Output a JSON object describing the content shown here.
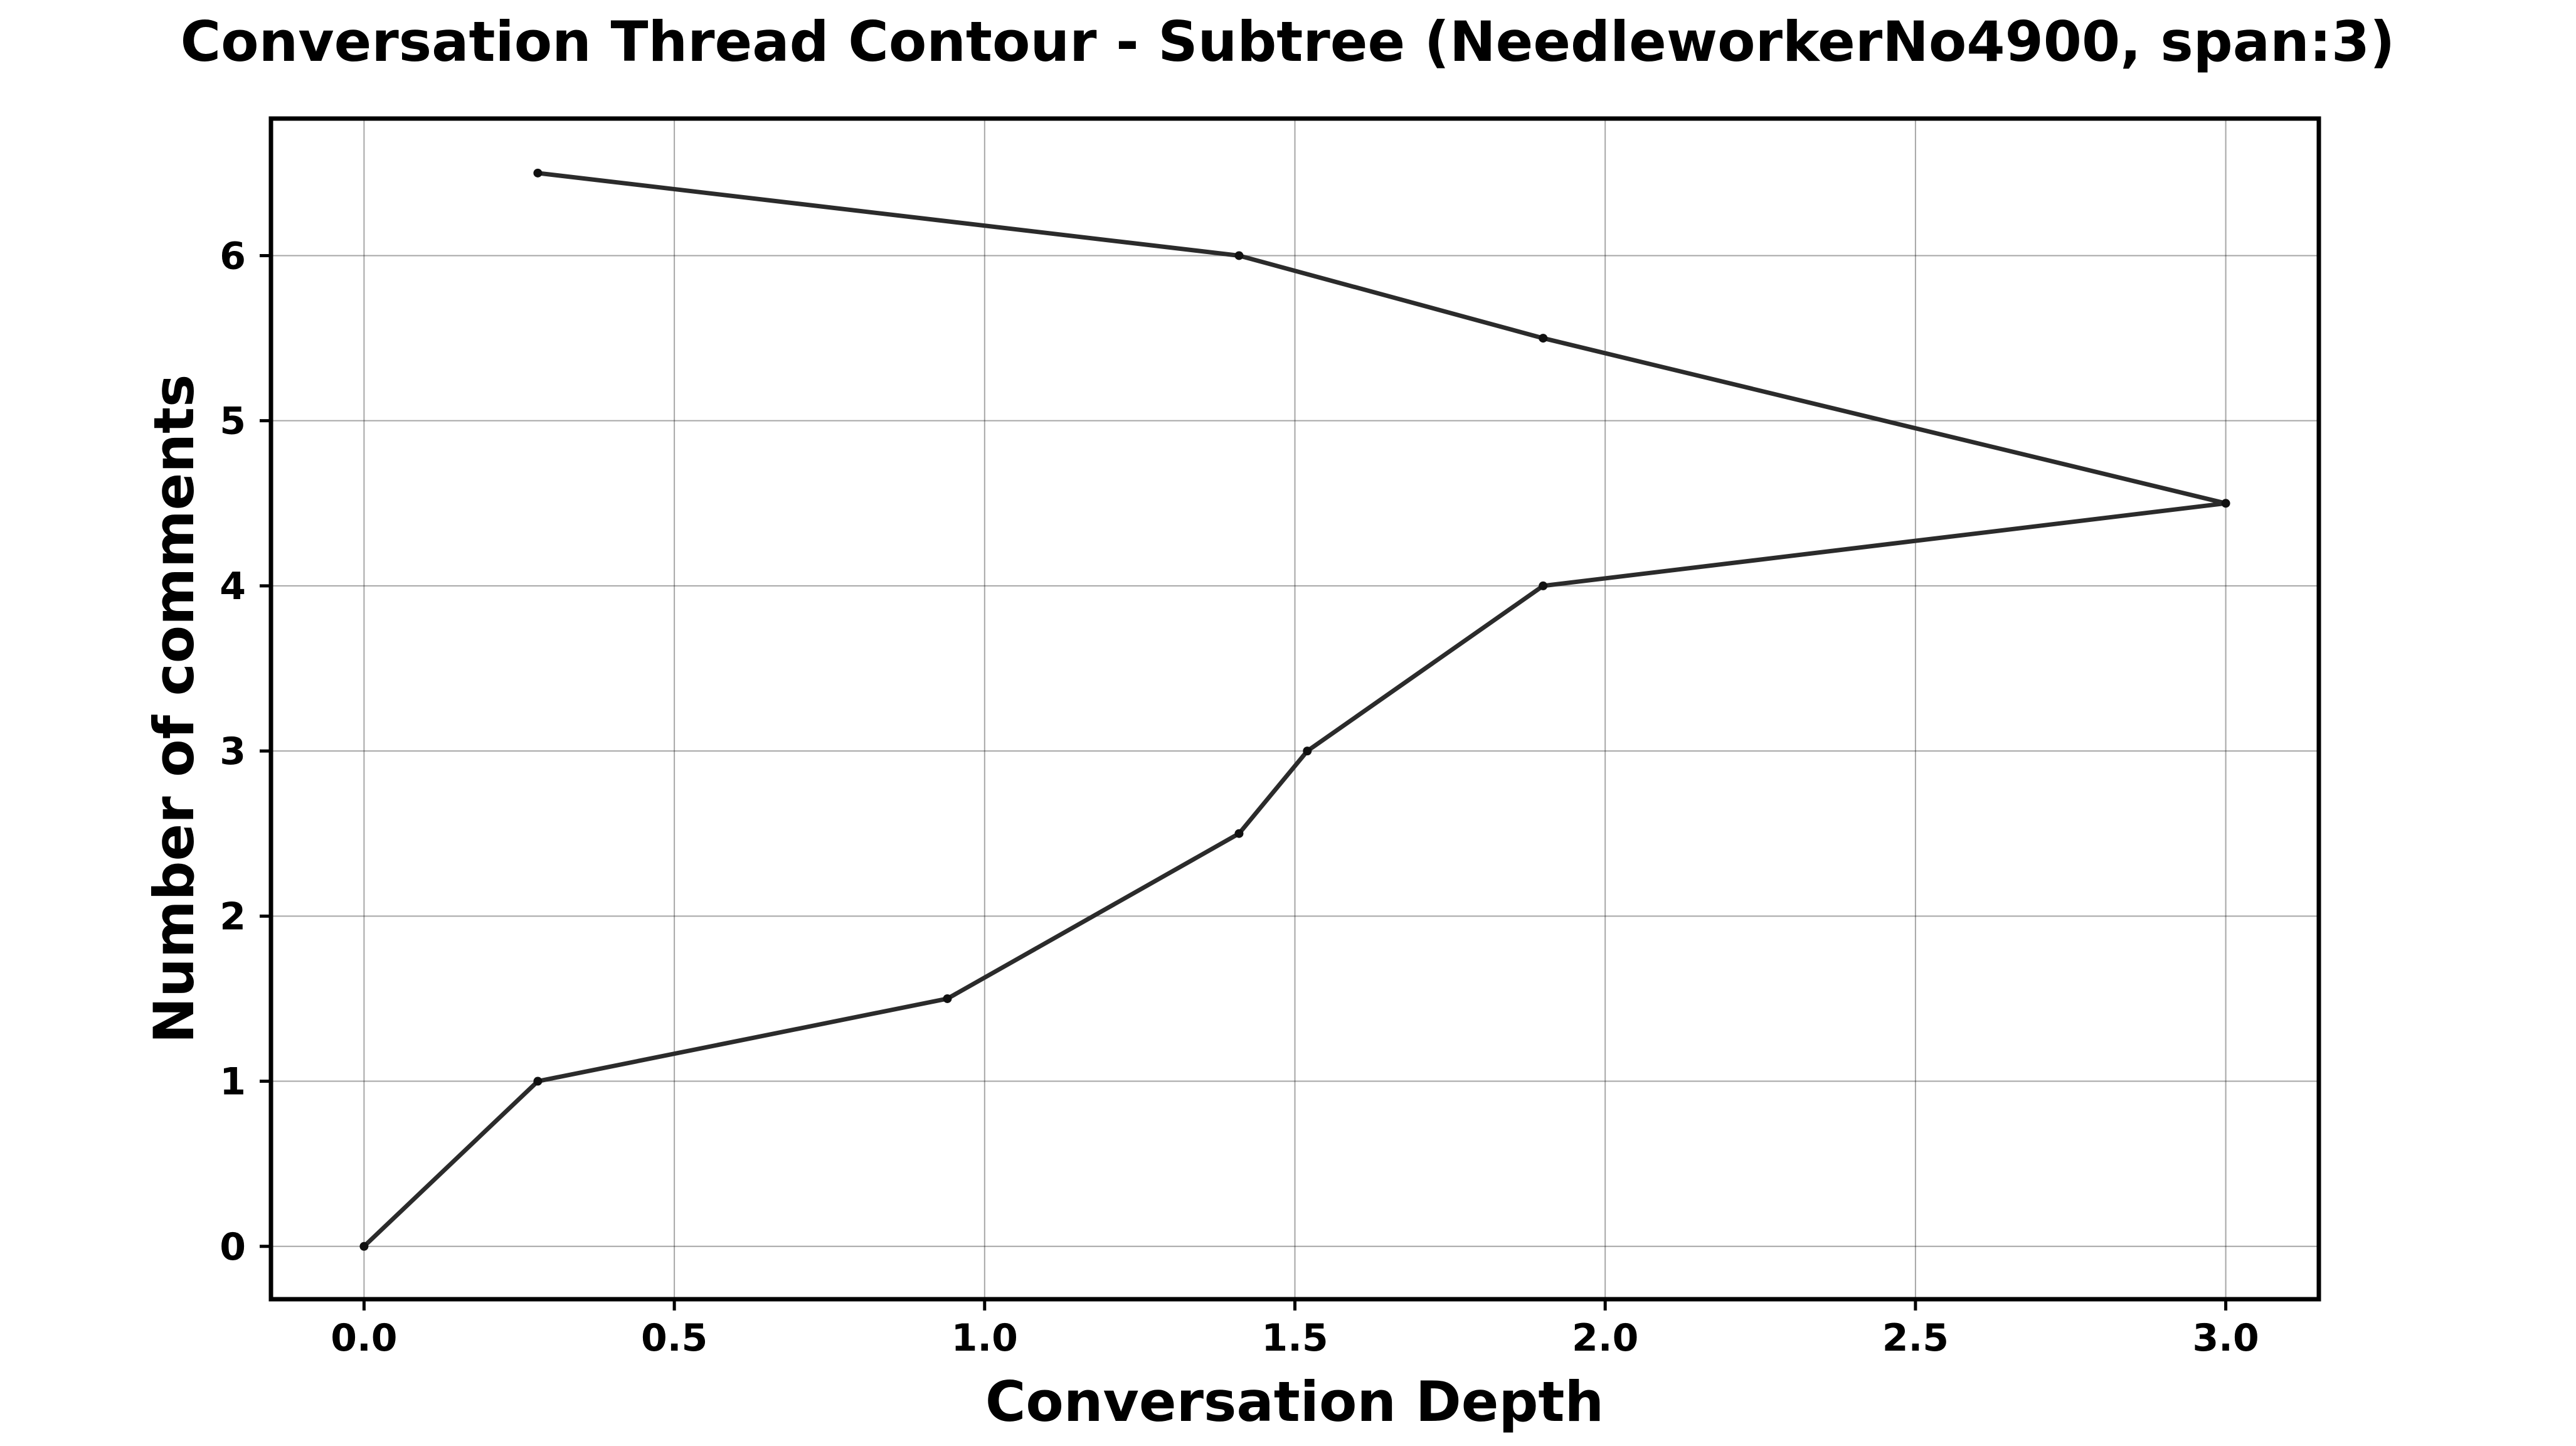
{
  "chart_data": {
    "type": "line",
    "title": "Conversation Thread Contour  - Subtree (NeedleworkerNo4900, span:3)",
    "xlabel": "Conversation Depth",
    "ylabel": "Number of comments",
    "xlim": [
      -0.15,
      3.15
    ],
    "ylim": [
      -0.32,
      6.83
    ],
    "xticks": [
      0.0,
      0.5,
      1.0,
      1.5,
      2.0,
      2.5,
      3.0
    ],
    "xtick_labels": [
      "0.0",
      "0.5",
      "1.0",
      "1.5",
      "2.0",
      "2.5",
      "3.0"
    ],
    "yticks": [
      0,
      1,
      2,
      3,
      4,
      5,
      6
    ],
    "ytick_labels": [
      "0",
      "1",
      "2",
      "3",
      "4",
      "5",
      "6"
    ],
    "grid": true,
    "line_color": "#2b2b2b",
    "series": [
      {
        "x": [
          0.0,
          0.28,
          0.94,
          1.41,
          1.52,
          1.9,
          3.0,
          1.9,
          1.41,
          0.28
        ],
        "y": [
          0,
          1,
          1.5,
          2.5,
          3,
          4,
          4.5,
          5.5,
          6,
          6.5
        ]
      }
    ]
  }
}
